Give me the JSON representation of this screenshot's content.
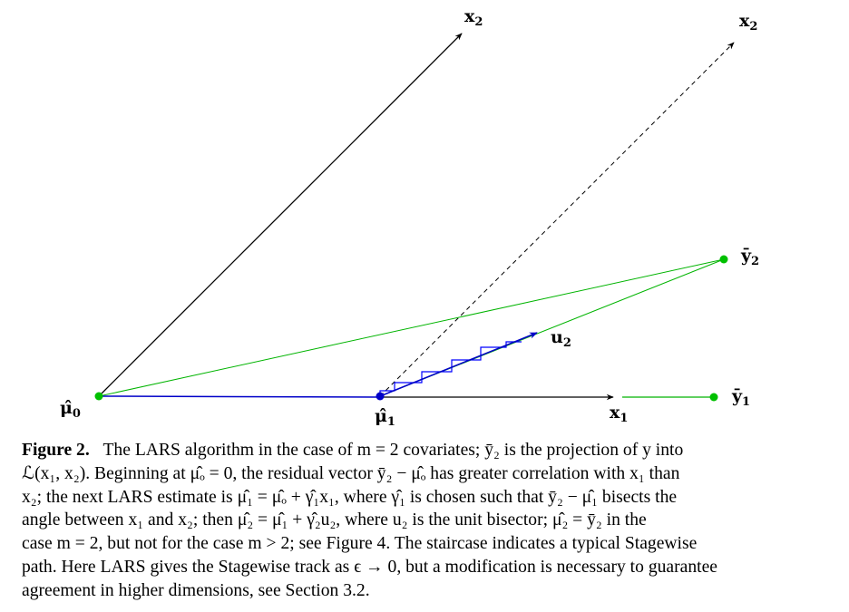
{
  "diagram": {
    "labels": {
      "mu0": {
        "main": "μ̂",
        "sub": "0"
      },
      "mu1": {
        "main": "μ̂",
        "sub": "1"
      },
      "x1": {
        "main": "x",
        "sub": "1"
      },
      "x2_solid": {
        "main": "x",
        "sub": "2"
      },
      "x2_dashed": {
        "main": "x",
        "sub": "2"
      },
      "u2": {
        "main": "u",
        "sub": "2"
      },
      "ybar1": {
        "main": "ȳ",
        "sub": "1"
      },
      "ybar2": {
        "main": "ȳ",
        "sub": "2"
      }
    },
    "colors": {
      "axis": "#000000",
      "projection": "#00b400",
      "lars_path": "#0000c8",
      "stagewise": "#0000ff",
      "point_green": "#00c000",
      "point_blue": "#0000c8"
    }
  },
  "caption": {
    "label": "Figure 2.",
    "lines": [
      "The LARS algorithm in the case of m = 2 covariates; ȳ₂ is the projection of y into",
      "ℒ(x₁, x₂). Beginning at μ̂ₒ = 0, the residual vector ȳ₂ − μ̂ₒ has greater correlation with x₁ than",
      "x₂; the next LARS estimate is μ̂₁ = μ̂ₒ + γ̂₁x₁, where γ̂₁ is chosen such that ȳ₂ − μ̂₁ bisects the",
      "angle between x₁ and x₂; then μ̂₂ = μ̂₁ + γ̂₂u₂, where u₂ is the unit bisector; μ̂₂ = ȳ₂ in the",
      "case m = 2, but not for the case m > 2; see Figure 4. The staircase indicates a typical Stagewise",
      "path. Here LARS gives the Stagewise track as ϵ → 0, but a modification is necessary to guarantee",
      "agreement in higher dimensions, see Section 3.2."
    ]
  }
}
